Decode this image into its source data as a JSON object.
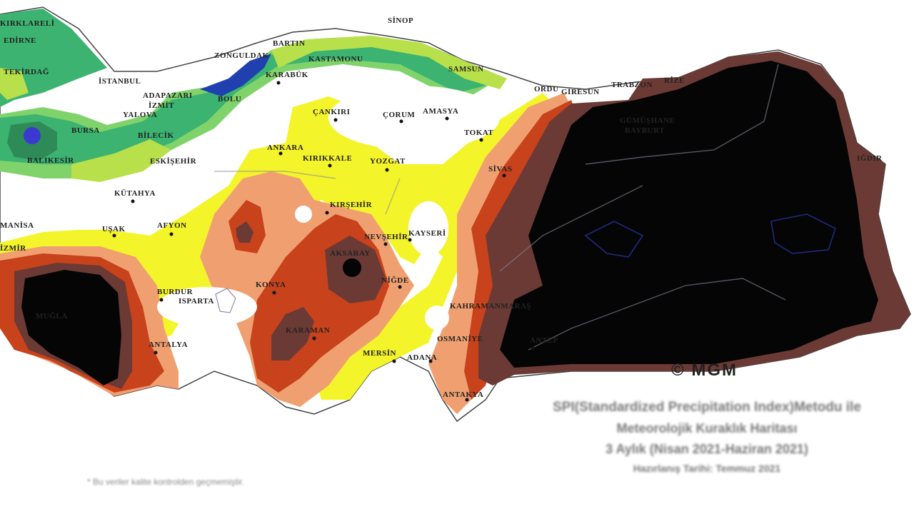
{
  "map": {
    "credit": "© MGM",
    "title_line1": "SPI(Standardized Precipitation Index)Metodu ile",
    "title_line2": "Meteorolojik Kuraklık Haritası",
    "title_line3": "3 Aylık (Nisan 2021-Haziran 2021)",
    "title_line4": "Hazırlanış Tarihi: Temmuz 2021",
    "footnote": "* Bu veriler kalite kontrolden geçmemiştir."
  },
  "cities": [
    {
      "name": "KIRKLARELİ"
    },
    {
      "name": "EDİRNE"
    },
    {
      "name": "TEKİRDAĞ"
    },
    {
      "name": "SİNOP"
    },
    {
      "name": "BARTIN"
    },
    {
      "name": "ZONGULDAK"
    },
    {
      "name": "KASTAMONU"
    },
    {
      "name": "KARABÜK"
    },
    {
      "name": "SAMSUN"
    },
    {
      "name": "İSTANBUL"
    },
    {
      "name": "ADAPAZARI"
    },
    {
      "name": "İZMİT"
    },
    {
      "name": "BOLU"
    },
    {
      "name": "YALOVA"
    },
    {
      "name": "BİLECİK"
    },
    {
      "name": "BURSA"
    },
    {
      "name": "ÇANKIRI"
    },
    {
      "name": "ÇORUM"
    },
    {
      "name": "AMASYA"
    },
    {
      "name": "TOKAT"
    },
    {
      "name": "ORDU"
    },
    {
      "name": "GİRESUN"
    },
    {
      "name": "TRABZON"
    },
    {
      "name": "RİZE"
    },
    {
      "name": "GÜMÜŞHANE"
    },
    {
      "name": "BAYBURT"
    },
    {
      "name": "IĞDIR"
    },
    {
      "name": "BALIKESİR"
    },
    {
      "name": "ESKİŞEHİR"
    },
    {
      "name": "ANKARA"
    },
    {
      "name": "KIRIKKALE"
    },
    {
      "name": "YOZGAT"
    },
    {
      "name": "SİVAS"
    },
    {
      "name": "KÜTAHYA"
    },
    {
      "name": "KIRŞEHİR"
    },
    {
      "name": "MANİSA"
    },
    {
      "name": "UŞAK"
    },
    {
      "name": "AFYON"
    },
    {
      "name": "NEVŞEHİR"
    },
    {
      "name": "KAYSERİ"
    },
    {
      "name": "İZMİR"
    },
    {
      "name": "AKSARAY"
    },
    {
      "name": "NİĞDE"
    },
    {
      "name": "KONYA"
    },
    {
      "name": "BURDUR"
    },
    {
      "name": "ISPARTA"
    },
    {
      "name": "KAHRAMANMARAŞ"
    },
    {
      "name": "KARAMAN"
    },
    {
      "name": "OSMANİYE"
    },
    {
      "name": "ANTEP"
    },
    {
      "name": "ANTALYA"
    },
    {
      "name": "MERSİN"
    },
    {
      "name": "ADANA"
    },
    {
      "name": "ANTAKYA"
    },
    {
      "name": "MUĞLA"
    }
  ],
  "legend_colors": {
    "extreme_wet": "#1f1fb8",
    "very_wet": "#2e8b57",
    "moderate_wet": "#3cb371",
    "light_wet": "#7fd36a",
    "near_normal_wet": "#b8e04a",
    "normal": "#ffffff",
    "mild_dry": "#f4f42a",
    "moderate_dry": "#f0a070",
    "severe_dry": "#c8421c",
    "very_severe_dry": "#6b3a35",
    "extreme_dry": "#050505"
  }
}
